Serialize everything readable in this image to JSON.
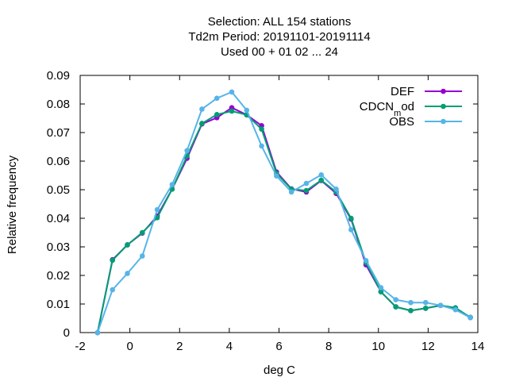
{
  "chart_data": {
    "type": "line",
    "title_lines": [
      "Selection: ALL    154 stations",
      "Td2m  Period: 20191101-20191114",
      "Used  00 + 01 02 ... 24"
    ],
    "xlabel": "deg C",
    "ylabel": "Relative frequency",
    "xlim": [
      -2,
      14
    ],
    "ylim": [
      0,
      0.09
    ],
    "xticks": [
      "-2",
      "0",
      "2",
      "4",
      "6",
      "8",
      "10",
      "12",
      "14"
    ],
    "yticks": [
      "0",
      "0.01",
      "0.02",
      "0.03",
      "0.04",
      "0.05",
      "0.06",
      "0.07",
      "0.08",
      "0.09"
    ],
    "legend_position": "top-right",
    "x": [
      -1.3,
      -0.7,
      -0.1,
      0.5,
      1.1,
      1.7,
      2.3,
      2.9,
      3.5,
      4.1,
      4.7,
      5.3,
      5.9,
      6.5,
      7.1,
      7.7,
      8.3,
      8.9,
      9.5,
      10.1,
      10.7,
      11.3,
      11.9,
      12.5,
      13.1,
      13.7
    ],
    "series": [
      {
        "name": "DEF",
        "color": "#9400d3",
        "values": [
          0.0,
          0.0255,
          0.0307,
          0.0348,
          0.0408,
          0.0502,
          0.061,
          0.073,
          0.0752,
          0.0787,
          0.0762,
          0.0724,
          0.0562,
          0.0503,
          0.0492,
          0.0532,
          0.0487,
          0.0397,
          0.0237,
          0.0143,
          0.009,
          0.0077,
          0.0085,
          0.0095,
          0.0085,
          0.0053
        ]
      },
      {
        "name": "CDCN_mod",
        "legend_main": "CDCN",
        "legend_sub": "m",
        "legend_tail": "od",
        "color": "#009e73",
        "values": [
          0.0,
          0.0253,
          0.0307,
          0.035,
          0.0402,
          0.0502,
          0.0618,
          0.0732,
          0.0763,
          0.0775,
          0.0762,
          0.0712,
          0.0557,
          0.0502,
          0.0497,
          0.0533,
          0.0492,
          0.04,
          0.0245,
          0.0143,
          0.009,
          0.0077,
          0.0085,
          0.0095,
          0.0087,
          0.0053
        ]
      },
      {
        "name": "OBS",
        "color": "#56b4e9",
        "values": [
          0.0,
          0.015,
          0.0207,
          0.0268,
          0.043,
          0.0518,
          0.0637,
          0.0782,
          0.082,
          0.0842,
          0.0778,
          0.0653,
          0.0548,
          0.0492,
          0.0522,
          0.0552,
          0.0502,
          0.036,
          0.0252,
          0.0157,
          0.0115,
          0.0105,
          0.0105,
          0.0095,
          0.008,
          0.0052
        ]
      }
    ]
  }
}
